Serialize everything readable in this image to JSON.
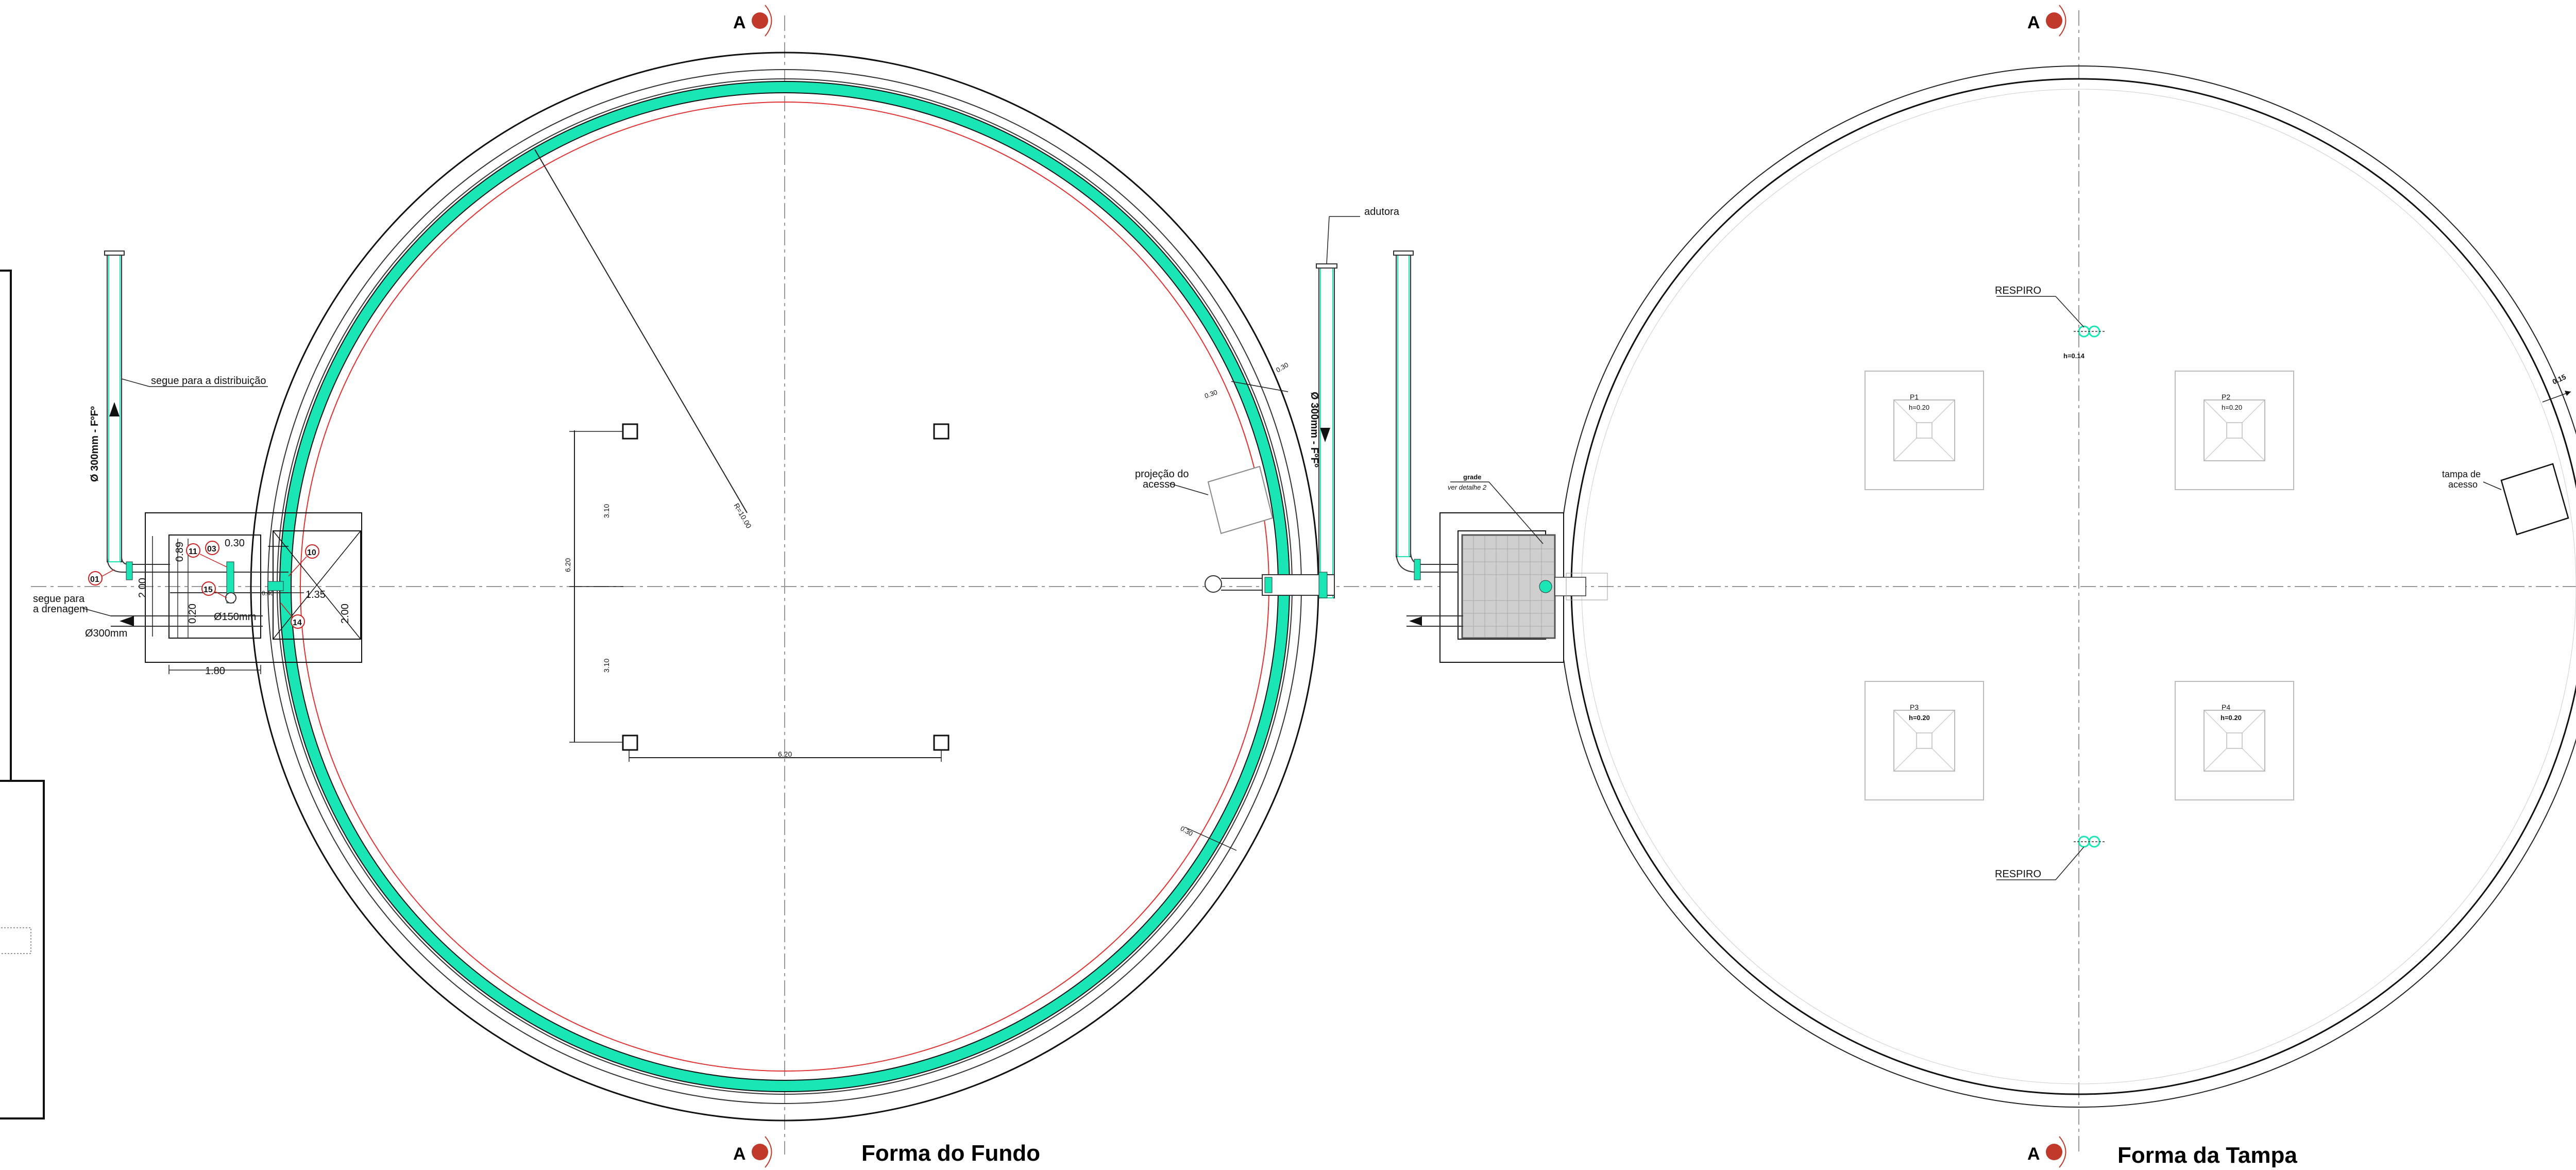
{
  "titles": {
    "fundo": "Forma do Fundo",
    "tampa": "Forma da Tampa"
  },
  "section_marker": "A",
  "fundo_labels": {
    "dist": "segue para a distribuição",
    "drenagem_1": "segue para",
    "drenagem_2": "a drenagem",
    "pipe_left": "Ø 300mm - FºFº",
    "pipe_right": "Ø 300mm - FºFº",
    "d300": "Ø300mm",
    "d150": "Ø150mm",
    "adutora": "adutora",
    "projecao_1": "projeção do",
    "projecao_2": "acesso",
    "radius": "R=10.00",
    "dim_180": "1.80",
    "dim_200_left": "2.00",
    "dim_200_right": "2.00",
    "dim_135": "1.35",
    "dim_030_top": "0.30",
    "dim_089": "0.89",
    "dim_020": "0.20",
    "dim_620_v": "6.20",
    "dim_310_a": "3.10",
    "dim_310_b": "3.10",
    "dim_620_h": "6.20",
    "dim_030_wall_a": "0.30",
    "dim_030_wall_b": "0.30",
    "dim_030_wall_c": "0.30",
    "dim_red_small": "0.40"
  },
  "markers": [
    "01",
    "11",
    "03",
    "10",
    "15",
    "14"
  ],
  "tampa_labels": {
    "respiro_top": "RESPIRO",
    "respiro_bottom": "RESPIRO",
    "h014": "h=0.14",
    "grade_1": "grade",
    "grade_2": "ver detalhe 2",
    "tampa_1": "tampa de",
    "tampa_2": "acesso",
    "dim_015": "0.15",
    "p1": "P1",
    "p1_h": "h=0.20",
    "p2": "P2",
    "p2_h": "h=0.20",
    "p3": "P3",
    "p3_h": "h=0.20",
    "p4": "P4",
    "p4_h": "h=0.20"
  },
  "colors": {
    "wall": "#19e6b4",
    "red_line": "#e03030",
    "marker_red": "#cc1f1f",
    "marker_dark": "#c0392b",
    "grid_gray": "#b0b0b0",
    "grate_fill": "#cfcfcf"
  }
}
